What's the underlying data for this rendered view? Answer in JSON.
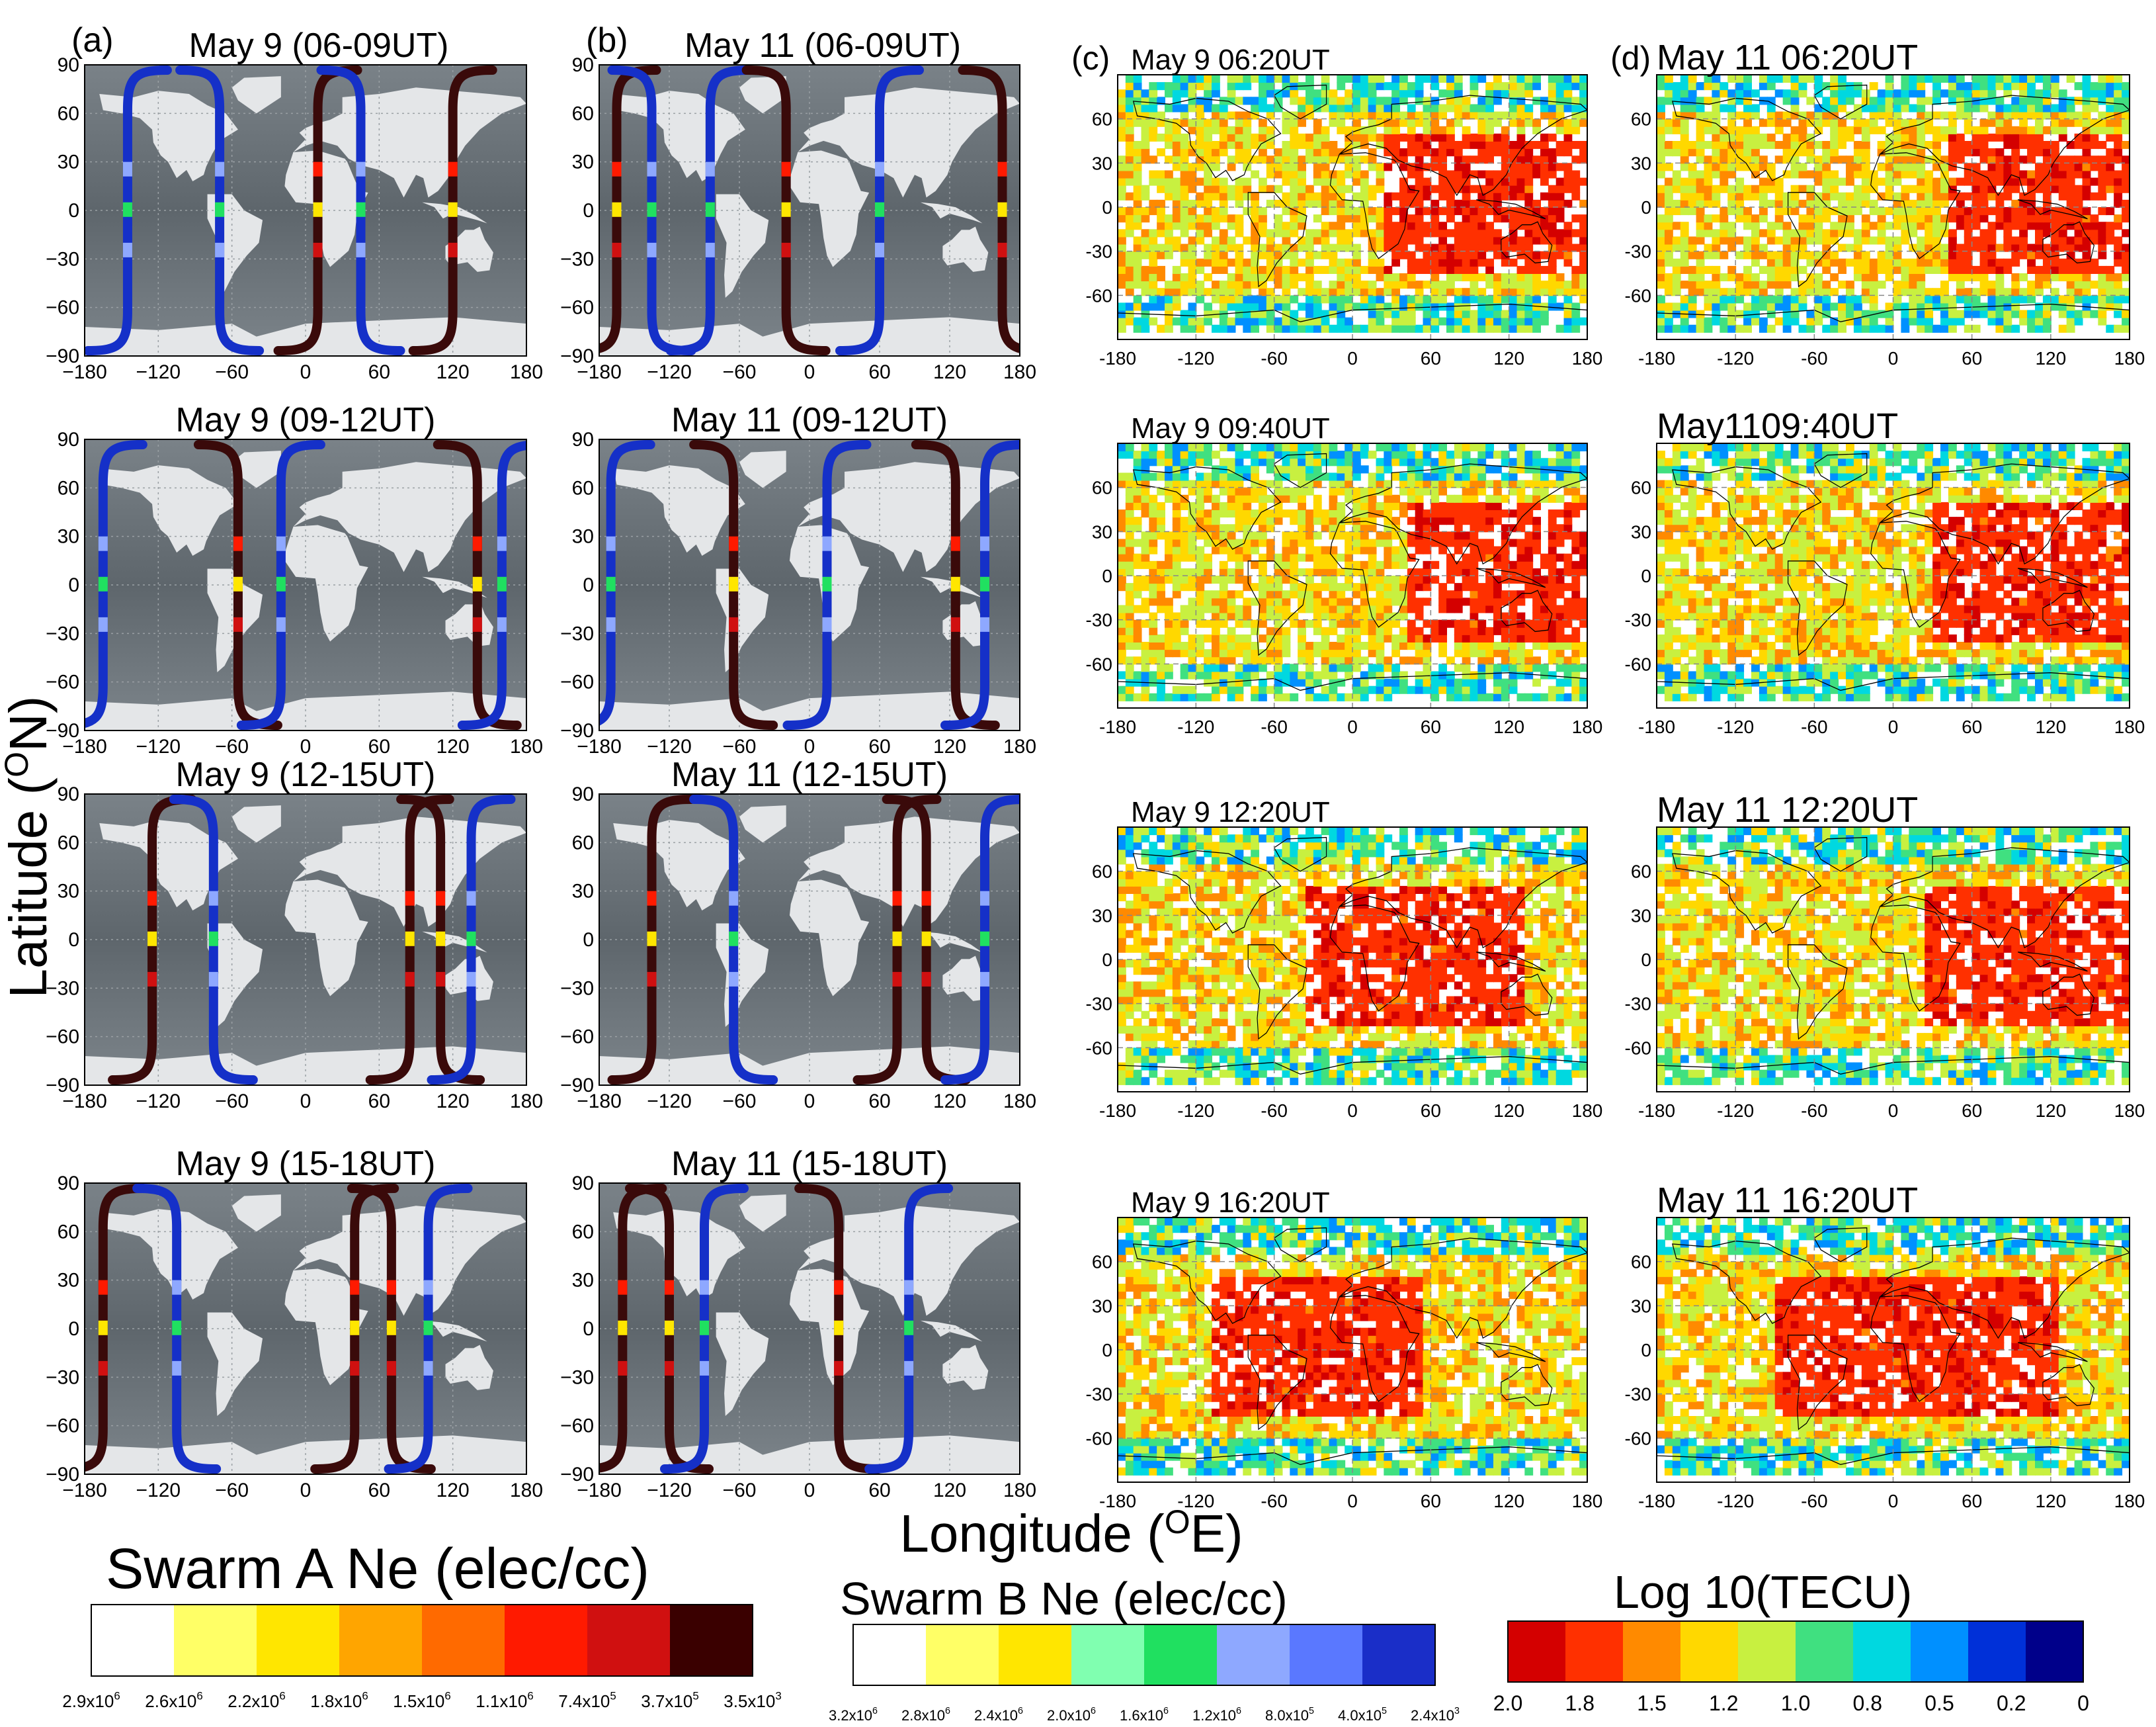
{
  "figure": {
    "ylabel": "Latitude (",
    "ylabel_sup": "O",
    "ylabel_tail": "N)",
    "xlabel": "Longitude (",
    "xlabel_sup": "O",
    "xlabel_tail": "E)"
  },
  "chart_data": [
    {
      "type": "map-track",
      "panel": "a",
      "tag": "(a)",
      "columns": [
        "May 9 (06-09UT)",
        "May 9 (09-12UT)",
        "May 9 (12-15UT)",
        "May 9 (15-18UT)"
      ],
      "xticks": [
        "−180",
        "−120",
        "−60",
        "0",
        "60",
        "120",
        "180"
      ],
      "yticks": [
        "90",
        "60",
        "30",
        "0",
        "−30",
        "−60",
        "−90"
      ],
      "xlim": [
        -180,
        180
      ],
      "ylim": [
        -90,
        90
      ],
      "satellite": "Swarm A (dark) and Swarm B (blue) orbit tracks colored by Ne",
      "tracks": [
        [
          {
            "lon": -145,
            "sat": "B"
          },
          {
            "lon": -70,
            "sat": "B"
          },
          {
            "lon": 10,
            "sat": "A"
          },
          {
            "lon": 45,
            "sat": "B"
          },
          {
            "lon": 120,
            "sat": "A"
          }
        ],
        [
          {
            "lon": -165,
            "sat": "B"
          },
          {
            "lon": -55,
            "sat": "A"
          },
          {
            "lon": -20,
            "sat": "B"
          },
          {
            "lon": 140,
            "sat": "A"
          },
          {
            "lon": 160,
            "sat": "B"
          }
        ],
        [
          {
            "lon": -125,
            "sat": "A"
          },
          {
            "lon": -75,
            "sat": "B"
          },
          {
            "lon": 85,
            "sat": "A"
          },
          {
            "lon": 110,
            "sat": "A"
          },
          {
            "lon": 135,
            "sat": "B"
          }
        ],
        [
          {
            "lon": -165,
            "sat": "A"
          },
          {
            "lon": -105,
            "sat": "B"
          },
          {
            "lon": 40,
            "sat": "A"
          },
          {
            "lon": 70,
            "sat": "A"
          },
          {
            "lon": 100,
            "sat": "B"
          }
        ]
      ]
    },
    {
      "type": "map-track",
      "panel": "b",
      "tag": "(b)",
      "columns": [
        "May 11 (06-09UT)",
        "May 11 (09-12UT)",
        "May 11 (12-15UT)",
        "May 11 (15-18UT)"
      ],
      "xticks": [
        "−180",
        "−120",
        "−60",
        "0",
        "60",
        "120",
        "180"
      ],
      "yticks": [
        "90",
        "60",
        "30",
        "0",
        "−30",
        "−60",
        "−90"
      ],
      "xlim": [
        -180,
        180
      ],
      "ylim": [
        -90,
        90
      ],
      "tracks": [
        [
          {
            "lon": -165,
            "sat": "A"
          },
          {
            "lon": -135,
            "sat": "B"
          },
          {
            "lon": -85,
            "sat": "B"
          },
          {
            "lon": -20,
            "sat": "A"
          },
          {
            "lon": 60,
            "sat": "B"
          },
          {
            "lon": 165,
            "sat": "A"
          }
        ],
        [
          {
            "lon": -170,
            "sat": "B"
          },
          {
            "lon": -65,
            "sat": "A"
          },
          {
            "lon": 15,
            "sat": "B"
          },
          {
            "lon": 125,
            "sat": "A"
          },
          {
            "lon": 150,
            "sat": "B"
          }
        ],
        [
          {
            "lon": -135,
            "sat": "A"
          },
          {
            "lon": -65,
            "sat": "B"
          },
          {
            "lon": 75,
            "sat": "A"
          },
          {
            "lon": 100,
            "sat": "A"
          },
          {
            "lon": 150,
            "sat": "B"
          }
        ],
        [
          {
            "lon": -160,
            "sat": "A"
          },
          {
            "lon": -120,
            "sat": "A"
          },
          {
            "lon": -90,
            "sat": "B"
          },
          {
            "lon": 25,
            "sat": "A"
          },
          {
            "lon": 85,
            "sat": "B"
          }
        ]
      ]
    },
    {
      "type": "heatmap-map",
      "panel": "c",
      "tag": "(c)",
      "quantity": "Log10 TEC",
      "columns": [
        "May 9 06:20UT",
        "May 9 09:40UT",
        "May 9 12:20UT",
        "May 9 16:20UT"
      ],
      "xticks": [
        "-180",
        "-120",
        "-60",
        "0",
        "60",
        "120",
        "180"
      ],
      "yticks": [
        "60",
        "30",
        "0",
        "-30",
        "-60"
      ],
      "xlim": [
        -180,
        180
      ],
      "ylim": [
        -90,
        90
      ],
      "peak_region_lon": [
        [
          20,
          180
        ],
        [
          40,
          180
        ],
        [
          -40,
          130
        ],
        [
          -110,
          50
        ]
      ]
    },
    {
      "type": "heatmap-map",
      "panel": "d",
      "tag": "(d)",
      "quantity": "Log10 TEC",
      "columns": [
        "May 11 06:20UT",
        "May1109:40UT",
        "May 11 12:20UT",
        "May 11 16:20UT"
      ],
      "xticks": [
        "-180",
        "-120",
        "-60",
        "0",
        "60",
        "120",
        "180"
      ],
      "yticks": [
        "60",
        "30",
        "0",
        "-30",
        "-60"
      ],
      "xlim": [
        -180,
        180
      ],
      "ylim": [
        -90,
        90
      ],
      "peak_region_lon": [
        [
          40,
          180
        ],
        [
          30,
          180
        ],
        [
          20,
          180
        ],
        [
          -90,
          120
        ]
      ]
    },
    {
      "type": "colorbar",
      "title": "Swarm A Ne (elec/cc)",
      "labels": [
        "2.9x10^6",
        "2.6x10^6",
        "2.2x10^6",
        "1.8x10^6",
        "1.5x10^6",
        "1.1x10^6",
        "7.4x10^5",
        "3.7x10^5",
        "3.5x10^3"
      ],
      "colors": [
        "#ffffff",
        "#ffff66",
        "#ffe600",
        "#ffa500",
        "#ff6a00",
        "#ff1a00",
        "#d01010",
        "#3a0000"
      ]
    },
    {
      "type": "colorbar",
      "title": "Swarm B Ne (elec/cc)",
      "labels": [
        "3.2x10^6",
        "2.8x10^6",
        "2.4x10^6",
        "2.0x10^6",
        "1.6x10^6",
        "1.2x10^6",
        "8.0x10^5",
        "4.0x10^5",
        "2.4x10^3"
      ],
      "colors": [
        "#ffffff",
        "#ffff66",
        "#ffe600",
        "#80ffb0",
        "#20e060",
        "#8ea8ff",
        "#5a78ff",
        "#1a2ec8"
      ]
    },
    {
      "type": "colorbar",
      "title": "Log 10(TECU)",
      "labels": [
        "2.0",
        "1.8",
        "1.5",
        "1.2",
        "1.0",
        "0.8",
        "0.5",
        "0.2",
        "0"
      ],
      "colors": [
        "#d40000",
        "#ff3000",
        "#ff8a00",
        "#ffd800",
        "#c8f040",
        "#40e080",
        "#00d8e0",
        "#0090ff",
        "#0030d8",
        "#00008a"
      ]
    }
  ],
  "colors": {
    "swarm_a": "#3a0a0a",
    "swarm_b": "#1530c8",
    "map_bg": "#6b7378",
    "land": "#e4e6e8"
  }
}
